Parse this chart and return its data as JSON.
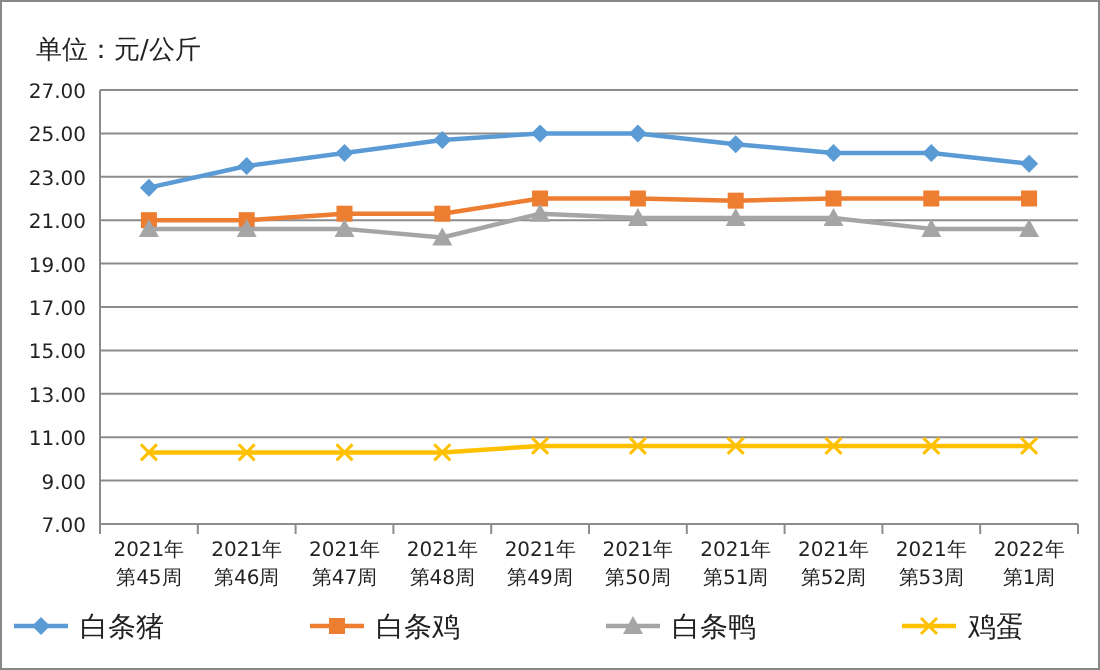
{
  "chart_data": {
    "type": "line",
    "ylabel": "单位：元/公斤",
    "categories": [
      "2021年第45周",
      "2021年第46周",
      "2021年第47周",
      "2021年第48周",
      "2021年第49周",
      "2021年第50周",
      "2021年第51周",
      "2021年第52周",
      "2021年第53周",
      "2022年第1周"
    ],
    "series": [
      {
        "name": "白条猪",
        "color": "#5b9bd5",
        "marker": "diamond",
        "values": [
          22.5,
          23.5,
          24.1,
          24.7,
          25.0,
          25.0,
          24.5,
          24.1,
          24.1,
          23.6
        ]
      },
      {
        "name": "白条鸡",
        "color": "#ed7d31",
        "marker": "square",
        "values": [
          21.0,
          21.0,
          21.3,
          21.3,
          22.0,
          22.0,
          21.9,
          22.0,
          22.0,
          22.0
        ]
      },
      {
        "name": "白条鸭",
        "color": "#a5a5a5",
        "marker": "triangle",
        "values": [
          20.6,
          20.6,
          20.6,
          20.2,
          21.3,
          21.1,
          21.1,
          21.1,
          20.6,
          20.6
        ]
      },
      {
        "name": "鸡蛋",
        "color": "#ffc000",
        "marker": "cross",
        "values": [
          10.3,
          10.3,
          10.3,
          10.3,
          10.6,
          10.6,
          10.6,
          10.6,
          10.6,
          10.6
        ]
      }
    ],
    "ylim": [
      7,
      27
    ],
    "yticks": [
      {
        "value": 7,
        "label": "7.00"
      },
      {
        "value": 9,
        "label": "9.00"
      },
      {
        "value": 11,
        "label": "11.00"
      },
      {
        "value": 13,
        "label": "13.00"
      },
      {
        "value": 15,
        "label": "15.00"
      },
      {
        "value": 17,
        "label": "17.00"
      },
      {
        "value": 19,
        "label": "19.00"
      },
      {
        "value": 21,
        "label": "21.00"
      },
      {
        "value": 23,
        "label": "23.00"
      },
      {
        "value": 25,
        "label": "25.00"
      },
      {
        "value": 27,
        "label": "27.00"
      }
    ],
    "grid": "y",
    "legend": "bottom",
    "line_style": "solid"
  }
}
